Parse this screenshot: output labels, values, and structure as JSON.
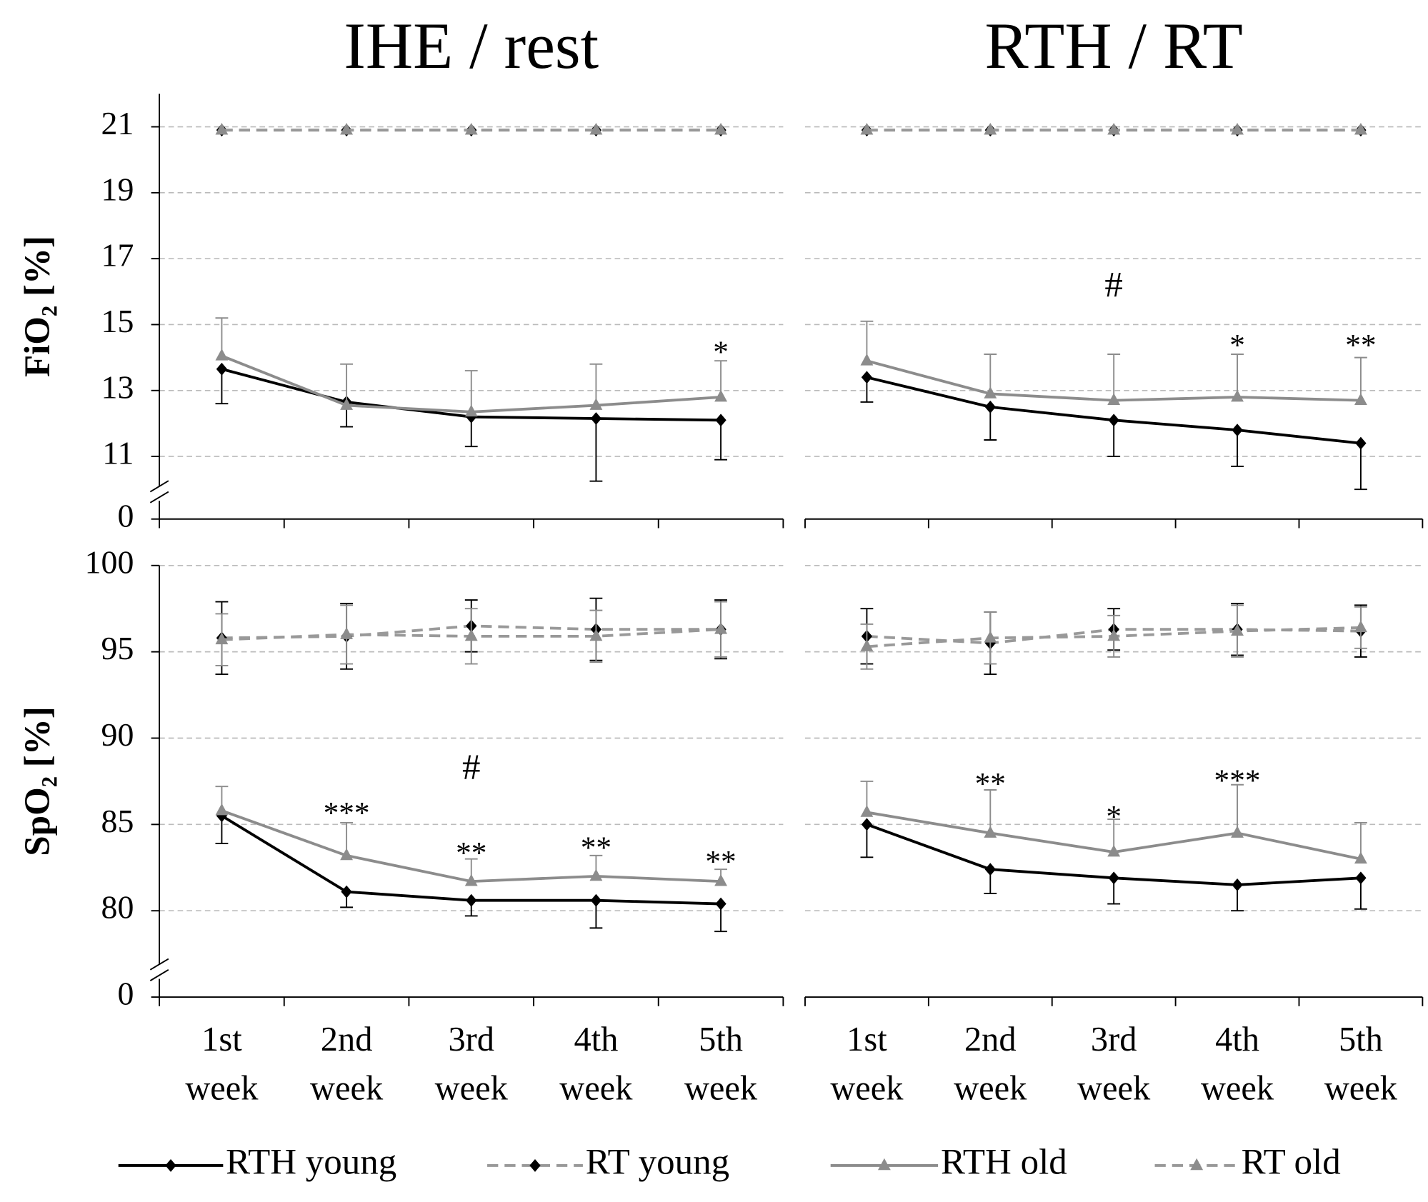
{
  "chart_data": [
    {
      "type": "line",
      "title": "IHE / rest",
      "ylabel": "FiO₂ [%]",
      "show_yaxis": true,
      "categories": [
        "1st week",
        "2nd week",
        "3rd week",
        "4th week",
        "5th week"
      ],
      "ylim": [
        0,
        22
      ],
      "ybreak": [
        0,
        9.1
      ],
      "yticks": [
        0,
        11,
        13,
        15,
        17,
        19,
        21
      ],
      "grid": true,
      "series": [
        {
          "name": "RTH young",
          "color": "#000000",
          "marker_color": "#000000",
          "marker": "diamond",
          "dash": false,
          "error_bars": "down",
          "values": [
            13.65,
            12.65,
            12.2,
            12.15,
            12.1
          ],
          "errors": [
            1.05,
            0.75,
            0.9,
            1.9,
            1.2
          ]
        },
        {
          "name": "RT young",
          "color": "#999999",
          "marker_color": "#000000",
          "marker": "diamond",
          "dash": true,
          "values": [
            20.9,
            20.9,
            20.9,
            20.9,
            20.9
          ]
        },
        {
          "name": "RTH old",
          "color": "#8c8c8c",
          "marker_color": "#8c8c8c",
          "marker": "triangle",
          "dash": false,
          "error_bars": "up",
          "values": [
            14.05,
            12.55,
            12.35,
            12.55,
            12.8
          ],
          "errors": [
            1.15,
            1.25,
            1.25,
            1.25,
            1.1
          ]
        },
        {
          "name": "RT old",
          "color": "#999999",
          "marker_color": "#8c8c8c",
          "marker": "triangle",
          "dash": true,
          "values": [
            20.9,
            20.9,
            20.9,
            20.9,
            20.9
          ]
        }
      ],
      "annotations": [
        {
          "text": "*",
          "category": "5th week",
          "y": 14.3
        }
      ]
    },
    {
      "type": "line",
      "title": "RTH / RT",
      "show_yaxis": false,
      "categories": [
        "1st week",
        "2nd week",
        "3rd week",
        "4th week",
        "5th week"
      ],
      "ylim": [
        0,
        22
      ],
      "ybreak": [
        0,
        9.1
      ],
      "yticks": [
        0,
        11,
        13,
        15,
        17,
        19,
        21
      ],
      "grid": true,
      "series": [
        {
          "name": "RTH young",
          "color": "#000000",
          "marker_color": "#000000",
          "marker": "diamond",
          "dash": false,
          "error_bars": "down",
          "values": [
            13.4,
            12.5,
            12.1,
            11.8,
            11.4
          ],
          "errors": [
            0.75,
            1.0,
            1.1,
            1.1,
            1.4
          ]
        },
        {
          "name": "RT young",
          "color": "#999999",
          "marker_color": "#000000",
          "marker": "diamond",
          "dash": true,
          "values": [
            20.9,
            20.9,
            20.9,
            20.9,
            20.9
          ]
        },
        {
          "name": "RTH old",
          "color": "#8c8c8c",
          "marker_color": "#8c8c8c",
          "marker": "triangle",
          "dash": false,
          "error_bars": "up",
          "values": [
            13.9,
            12.9,
            12.7,
            12.8,
            12.7
          ],
          "errors": [
            1.2,
            1.2,
            1.4,
            1.3,
            1.3
          ]
        },
        {
          "name": "RT old",
          "color": "#999999",
          "marker_color": "#8c8c8c",
          "marker": "triangle",
          "dash": true,
          "values": [
            20.9,
            20.9,
            20.9,
            20.9,
            20.9
          ]
        }
      ],
      "annotations": [
        {
          "text": "#",
          "category": "3rd week",
          "y": 16.1
        },
        {
          "text": "*",
          "category": "4th week",
          "y": 14.5
        },
        {
          "text": "**",
          "category": "5th week",
          "y": 14.5
        }
      ]
    },
    {
      "type": "line",
      "ylabel": "SpO₂ [%]",
      "show_yaxis": true,
      "categories": [
        "1st week",
        "2nd week",
        "3rd week",
        "4th week",
        "5th week"
      ],
      "ylim": [
        0,
        100
      ],
      "ybreak": [
        0,
        75
      ],
      "yticks": [
        0,
        80,
        85,
        90,
        95,
        100
      ],
      "grid": true,
      "series": [
        {
          "name": "RTH young",
          "color": "#000000",
          "marker_color": "#000000",
          "marker": "diamond",
          "dash": false,
          "error_bars": "down",
          "values": [
            85.5,
            81.1,
            80.6,
            80.6,
            80.4
          ],
          "errors": [
            1.6,
            0.9,
            0.9,
            1.6,
            1.6
          ]
        },
        {
          "name": "RT young",
          "color": "#999999",
          "marker_color": "#000000",
          "marker": "diamond",
          "dash": true,
          "error_bars": "both",
          "values": [
            95.8,
            95.9,
            96.5,
            96.3,
            96.3
          ],
          "errors": [
            2.1,
            1.9,
            1.5,
            1.8,
            1.7
          ]
        },
        {
          "name": "RTH old",
          "color": "#8c8c8c",
          "marker_color": "#8c8c8c",
          "marker": "triangle",
          "dash": false,
          "error_bars": "up",
          "values": [
            85.8,
            83.2,
            81.7,
            82.0,
            81.7
          ],
          "errors": [
            1.4,
            1.9,
            1.3,
            1.2,
            0.7
          ]
        },
        {
          "name": "RT old",
          "color": "#999999",
          "marker_color": "#8c8c8c",
          "marker": "triangle",
          "dash": true,
          "error_bars": "both",
          "values": [
            95.7,
            96.0,
            95.9,
            95.9,
            96.3
          ],
          "errors": [
            1.5,
            1.7,
            1.6,
            1.5,
            1.6
          ]
        }
      ],
      "annotations": [
        {
          "text": "#",
          "category": "3rd week",
          "y": 88.1
        },
        {
          "text": "***",
          "category": "2nd week",
          "y": 85.9
        },
        {
          "text": "**",
          "category": "3rd week",
          "y": 83.6
        },
        {
          "text": "**",
          "category": "4th week",
          "y": 83.9
        },
        {
          "text": "**",
          "category": "5th week",
          "y": 83.1
        }
      ]
    },
    {
      "type": "line",
      "show_yaxis": false,
      "categories": [
        "1st week",
        "2nd week",
        "3rd week",
        "4th week",
        "5th week"
      ],
      "ylim": [
        0,
        100
      ],
      "ybreak": [
        0,
        75
      ],
      "yticks": [
        0,
        80,
        85,
        90,
        95,
        100
      ],
      "grid": true,
      "series": [
        {
          "name": "RTH young",
          "color": "#000000",
          "marker_color": "#000000",
          "marker": "diamond",
          "dash": false,
          "error_bars": "down",
          "values": [
            85.0,
            82.4,
            81.9,
            81.5,
            81.9
          ],
          "errors": [
            1.9,
            1.4,
            1.5,
            1.5,
            1.8
          ]
        },
        {
          "name": "RT young",
          "color": "#999999",
          "marker_color": "#000000",
          "marker": "diamond",
          "dash": true,
          "error_bars": "both",
          "values": [
            95.9,
            95.5,
            96.3,
            96.3,
            96.2
          ],
          "errors": [
            1.6,
            1.8,
            1.2,
            1.5,
            1.5
          ]
        },
        {
          "name": "RTH old",
          "color": "#8c8c8c",
          "marker_color": "#8c8c8c",
          "marker": "triangle",
          "dash": false,
          "error_bars": "up",
          "values": [
            85.7,
            84.5,
            83.4,
            84.5,
            83.0
          ],
          "errors": [
            1.8,
            2.5,
            1.9,
            2.8,
            2.1
          ]
        },
        {
          "name": "RT old",
          "color": "#999999",
          "marker_color": "#8c8c8c",
          "marker": "triangle",
          "dash": true,
          "error_bars": "both",
          "values": [
            95.3,
            95.8,
            95.9,
            96.2,
            96.4
          ],
          "errors": [
            1.3,
            1.5,
            1.2,
            1.5,
            1.2
          ]
        }
      ],
      "annotations": [
        {
          "text": "**",
          "category": "2nd week",
          "y": 87.6
        },
        {
          "text": "*",
          "category": "3rd week",
          "y": 85.7
        },
        {
          "text": "***",
          "category": "4th week",
          "y": 87.8
        }
      ]
    }
  ]
}
